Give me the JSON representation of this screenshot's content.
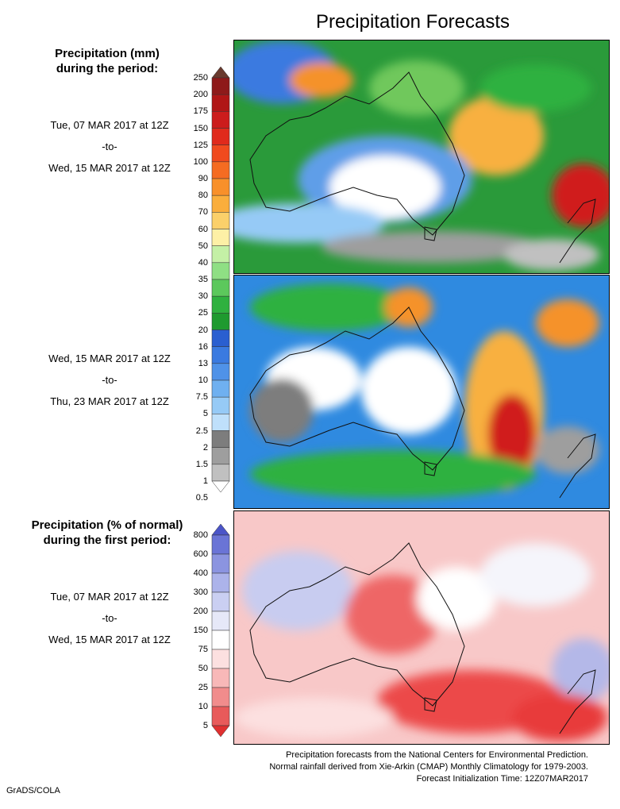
{
  "title": "Precipitation Forecasts",
  "precip_legend": {
    "heading_line1": "Precipitation (mm)",
    "heading_line2": "during the period:",
    "ticks": [
      "250",
      "200",
      "175",
      "150",
      "125",
      "100",
      "90",
      "80",
      "70",
      "60",
      "50",
      "40",
      "35",
      "30",
      "25",
      "20",
      "16",
      "13",
      "10",
      "7.5",
      "5",
      "2.5",
      "2",
      "1.5",
      "1",
      "0.5"
    ],
    "colors": [
      "#6a3a2e",
      "#8e1a1a",
      "#b01616",
      "#cc1c1c",
      "#e02a1c",
      "#f04a1e",
      "#f56c22",
      "#f8902a",
      "#faae3c",
      "#fbd06a",
      "#fdf0a6",
      "#c4f0a6",
      "#8fdf84",
      "#5cc85c",
      "#2fb13f",
      "#1f9a2f",
      "#2a5fd0",
      "#3a7ae0",
      "#4f92e8",
      "#6fb0f0",
      "#96caf6",
      "#bfe0fb",
      "#7d7d7d",
      "#9e9e9e",
      "#c0c0c0",
      "#ffffff"
    ]
  },
  "pct_legend": {
    "heading_line1": "Precipitation (% of normal)",
    "heading_line2": "during the first period:",
    "ticks": [
      "800",
      "600",
      "400",
      "300",
      "200",
      "150",
      "75",
      "50",
      "25",
      "10",
      "5"
    ],
    "colors": [
      "#4b55c8",
      "#6a74d6",
      "#8b94e0",
      "#acb3ea",
      "#cacff2",
      "#e6e8f8",
      "#ffffff",
      "#fce0e0",
      "#f8b8b8",
      "#f18c8c",
      "#e85a5a",
      "#e03030"
    ]
  },
  "periods": [
    {
      "start": "Tue, 07 MAR 2017 at 12Z",
      "sep": "-to-",
      "end": "Wed, 15 MAR 2017 at 12Z"
    },
    {
      "start": "Wed, 15 MAR 2017 at 12Z",
      "sep": "-to-",
      "end": "Thu, 23 MAR 2017 at 12Z"
    },
    {
      "start": "Tue, 07 MAR 2017 at 12Z",
      "sep": "-to-",
      "end": "Wed, 15 MAR 2017 at 12Z"
    }
  ],
  "footer": {
    "line1": "Precipitation forecasts from the National Centers for Environmental Prediction.",
    "line2": "Normal rainfall derived from Xie-Arkin (CMAP) Monthly Climatology for 1979-2003.",
    "line3": "Forecast Initialization Time: 12Z07MAR2017"
  },
  "credit": "GrADS/COLA"
}
